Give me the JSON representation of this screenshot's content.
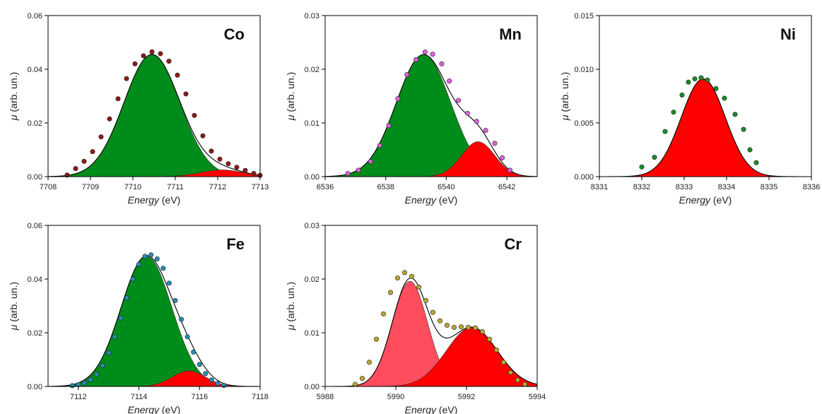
{
  "colors": {
    "green": "#008c1a",
    "red": "#ff0000",
    "light_red": "#ff4d5e",
    "fit_line": "#000000"
  },
  "chart_data": [
    {
      "id": "co",
      "type": "area",
      "label": "Co",
      "xlabel_italic": "Energy",
      "xlabel_unit": " (eV)",
      "ylabel_symbol": "μ",
      "ylabel_unit": " (arb. un.)",
      "xlim": [
        7708,
        7713
      ],
      "ylim": [
        0,
        0.06
      ],
      "xticks": [
        "7708",
        "7709",
        "7710",
        "7711",
        "7712",
        "7713"
      ],
      "yticks": [
        "0.00",
        "0.02",
        "0.04",
        "0.06"
      ],
      "dot_color": "#8b1a1a",
      "components": [
        {
          "color": "green",
          "center": 7710.45,
          "height": 0.0455,
          "sigma": 0.66
        },
        {
          "color": "red",
          "center": 7712.1,
          "height": 0.0025,
          "sigma": 0.5
        }
      ],
      "points": [
        [
          7708.45,
          0.0006
        ],
        [
          7708.65,
          0.003
        ],
        [
          7708.85,
          0.0057
        ],
        [
          7709.05,
          0.0093
        ],
        [
          7709.25,
          0.0148
        ],
        [
          7709.45,
          0.0215
        ],
        [
          7709.65,
          0.029
        ],
        [
          7709.85,
          0.0365
        ],
        [
          7710.05,
          0.042
        ],
        [
          7710.25,
          0.045
        ],
        [
          7710.45,
          0.0465
        ],
        [
          7710.65,
          0.0458
        ],
        [
          7710.85,
          0.043
        ],
        [
          7711.05,
          0.0378
        ],
        [
          7711.25,
          0.0308
        ],
        [
          7711.45,
          0.0228
        ],
        [
          7711.65,
          0.0152
        ],
        [
          7711.85,
          0.0095
        ],
        [
          7712.05,
          0.0065
        ],
        [
          7712.25,
          0.0048
        ],
        [
          7712.45,
          0.0035
        ],
        [
          7712.65,
          0.0023
        ],
        [
          7712.85,
          0.0012
        ],
        [
          7713.0,
          0.0005
        ]
      ]
    },
    {
      "id": "mn",
      "type": "area",
      "label": "Mn",
      "xlabel_italic": "Energy",
      "xlabel_unit": " (eV)",
      "ylabel_symbol": "μ",
      "ylabel_unit": " (arb. un.)",
      "xlim": [
        6536,
        6543
      ],
      "ylim": [
        0,
        0.03
      ],
      "xticks": [
        "6536",
        "6538",
        "6540",
        "6542"
      ],
      "yticks": [
        "0.00",
        "0.01",
        "0.02",
        "0.03"
      ],
      "dot_color": "#e060e0",
      "components": [
        {
          "color": "green",
          "center": 6539.25,
          "height": 0.0227,
          "sigma": 0.9
        },
        {
          "color": "red",
          "center": 6541.05,
          "height": 0.0065,
          "sigma": 0.55
        }
      ],
      "points": [
        [
          6536.75,
          0.0006
        ],
        [
          6537.1,
          0.0012
        ],
        [
          6537.5,
          0.0028
        ],
        [
          6537.8,
          0.0058
        ],
        [
          6538.1,
          0.0095
        ],
        [
          6538.4,
          0.0145
        ],
        [
          6538.7,
          0.019
        ],
        [
          6539.0,
          0.0218
        ],
        [
          6539.3,
          0.0232
        ],
        [
          6539.55,
          0.0228
        ],
        [
          6539.85,
          0.021
        ],
        [
          6540.1,
          0.0178
        ],
        [
          6540.4,
          0.0142
        ],
        [
          6540.7,
          0.0118
        ],
        [
          6541.0,
          0.0103
        ],
        [
          6541.3,
          0.0086
        ],
        [
          6541.6,
          0.0062
        ],
        [
          6541.85,
          0.0035
        ],
        [
          6542.1,
          0.0012
        ]
      ]
    },
    {
      "id": "ni",
      "type": "area",
      "label": "Ni",
      "xlabel_italic": "Energy",
      "xlabel_unit": " (eV)",
      "ylabel_symbol": "μ",
      "ylabel_unit": " (arb. un.)",
      "xlim": [
        8331,
        8336
      ],
      "ylim": [
        0,
        0.015
      ],
      "xticks": [
        "8331",
        "8332",
        "8333",
        "8334",
        "8335",
        "8336"
      ],
      "yticks": [
        "0.000",
        "0.005",
        "0.010",
        "0.015"
      ],
      "dot_color": "#1a8c2a",
      "components": [
        {
          "color": "red",
          "center": 8333.45,
          "height": 0.0091,
          "sigma": 0.52
        }
      ],
      "points": [
        [
          8332.0,
          0.0009
        ],
        [
          8332.3,
          0.0018
        ],
        [
          8332.55,
          0.0042
        ],
        [
          8332.75,
          0.006
        ],
        [
          8332.95,
          0.0076
        ],
        [
          8333.1,
          0.0088
        ],
        [
          8333.25,
          0.0091
        ],
        [
          8333.4,
          0.0092
        ],
        [
          8333.55,
          0.009
        ],
        [
          8333.75,
          0.0082
        ],
        [
          8333.95,
          0.0073
        ],
        [
          8334.2,
          0.0058
        ],
        [
          8334.4,
          0.0044
        ],
        [
          8334.55,
          0.0025
        ],
        [
          8334.7,
          0.0013
        ]
      ]
    },
    {
      "id": "fe",
      "type": "area",
      "label": "Fe",
      "xlabel_italic": "Energy",
      "xlabel_unit": " (eV)",
      "ylabel_symbol": "μ",
      "ylabel_unit": " (arb. un.)",
      "xlim": [
        7111,
        7118
      ],
      "ylim": [
        0,
        0.06
      ],
      "xticks": [
        "7112",
        "7114",
        "7116",
        "7118"
      ],
      "yticks": [
        "0.00",
        "0.02",
        "0.04",
        "0.06"
      ],
      "dot_color": "#2a8cb4",
      "components": [
        {
          "color": "green",
          "center": 7114.25,
          "height": 0.0485,
          "sigma": 0.84
        },
        {
          "color": "red",
          "center": 7115.65,
          "height": 0.0058,
          "sigma": 0.55
        }
      ],
      "points": [
        [
          7111.8,
          0.0003
        ],
        [
          7112.0,
          0.0007
        ],
        [
          7112.2,
          0.0013
        ],
        [
          7112.4,
          0.0025
        ],
        [
          7112.6,
          0.0045
        ],
        [
          7112.8,
          0.0078
        ],
        [
          7113.0,
          0.0125
        ],
        [
          7113.2,
          0.0185
        ],
        [
          7113.4,
          0.0255
        ],
        [
          7113.6,
          0.033
        ],
        [
          7113.8,
          0.04
        ],
        [
          7114.0,
          0.0455
        ],
        [
          7114.2,
          0.0485
        ],
        [
          7114.4,
          0.049
        ],
        [
          7114.6,
          0.0475
        ],
        [
          7114.8,
          0.044
        ],
        [
          7115.0,
          0.0385
        ],
        [
          7115.2,
          0.032
        ],
        [
          7115.4,
          0.025
        ],
        [
          7115.6,
          0.0185
        ],
        [
          7115.8,
          0.0128
        ],
        [
          7116.0,
          0.0082
        ],
        [
          7116.2,
          0.0048
        ],
        [
          7116.4,
          0.0024
        ],
        [
          7116.6,
          0.0011
        ],
        [
          7116.8,
          0.0004
        ]
      ]
    },
    {
      "id": "cr",
      "type": "area",
      "label": "Cr",
      "xlabel_italic": "Energy",
      "xlabel_unit": " (eV)",
      "ylabel_symbol": "μ",
      "ylabel_unit": " (arb. un.)",
      "xlim": [
        5988,
        5994
      ],
      "ylim": [
        0,
        0.03
      ],
      "xticks": [
        "5988",
        "5990",
        "5992",
        "5994"
      ],
      "yticks": [
        "0.00",
        "0.01",
        "0.02",
        "0.03"
      ],
      "dot_color": "#b8a830",
      "components": [
        {
          "color": "light_red",
          "center": 5990.4,
          "height": 0.0196,
          "sigma": 0.5
        },
        {
          "color": "red",
          "center": 5992.15,
          "height": 0.011,
          "sigma": 0.72
        }
      ],
      "points": [
        [
          5988.85,
          0.0004
        ],
        [
          5989.05,
          0.0015
        ],
        [
          5989.25,
          0.0045
        ],
        [
          5989.45,
          0.0088
        ],
        [
          5989.65,
          0.0135
        ],
        [
          5989.85,
          0.0175
        ],
        [
          5990.05,
          0.0202
        ],
        [
          5990.25,
          0.0212
        ],
        [
          5990.45,
          0.0205
        ],
        [
          5990.65,
          0.0185
        ],
        [
          5990.85,
          0.016
        ],
        [
          5991.05,
          0.0138
        ],
        [
          5991.25,
          0.0122
        ],
        [
          5991.45,
          0.0114
        ],
        [
          5991.65,
          0.011
        ],
        [
          5991.85,
          0.0111
        ],
        [
          5992.05,
          0.011
        ],
        [
          5992.25,
          0.0109
        ],
        [
          5992.45,
          0.0102
        ],
        [
          5992.65,
          0.0088
        ],
        [
          5992.85,
          0.0068
        ],
        [
          5993.05,
          0.0045
        ],
        [
          5993.25,
          0.0026
        ],
        [
          5993.45,
          0.0012
        ],
        [
          5993.65,
          0.0004
        ]
      ]
    }
  ]
}
